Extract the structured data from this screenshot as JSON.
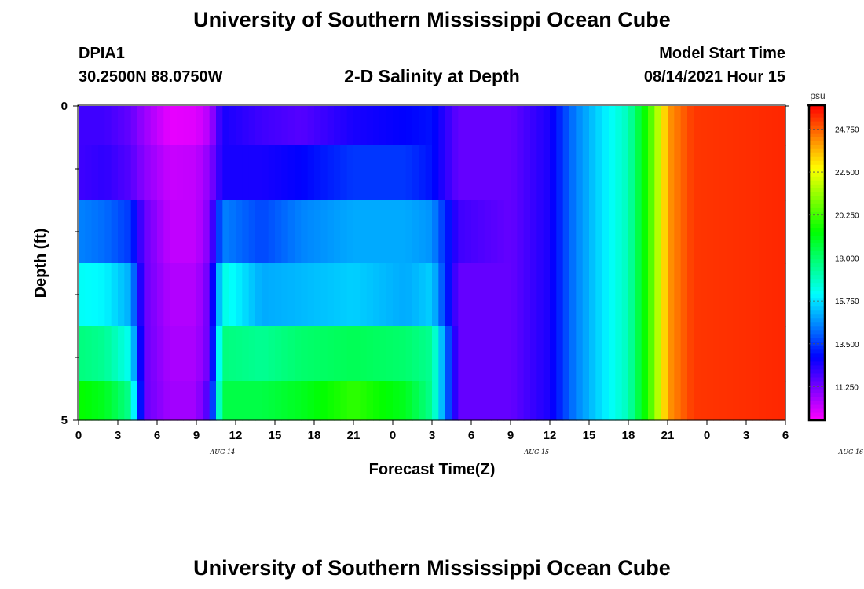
{
  "page_title": "University of Southern Mississippi Ocean Cube",
  "footer_title": "University of Southern Mississippi Ocean Cube",
  "header": {
    "station": "DPIA1",
    "coords": "30.2500N  88.0750W",
    "chart_title": "2-D Salinity at Depth",
    "model_label": "Model Start Time",
    "model_time": "08/14/2021 Hour 15"
  },
  "chart_data": {
    "type": "heatmap",
    "title": "2-D Salinity at Depth",
    "xlabel": "Forecast Time(Z)",
    "ylabel": "Depth (ft)",
    "x_ticks": [
      "0",
      "3",
      "6",
      "9",
      "12",
      "15",
      "18",
      "21",
      "0",
      "3",
      "6",
      "9",
      "12",
      "15",
      "18",
      "21",
      "0",
      "3",
      "6"
    ],
    "x_date_labels": [
      {
        "label": "AUG 14",
        "hour_index": 11
      },
      {
        "label": "AUG 15",
        "hour_index": 35
      },
      {
        "label": "AUG 16",
        "hour_index": 59
      }
    ],
    "y_tick_labels": [
      {
        "value": 0,
        "label": "0"
      },
      {
        "value": 5,
        "label": "5"
      }
    ],
    "y_minor_ticks": [
      1,
      2,
      3,
      4
    ],
    "ylim": [
      0,
      5
    ],
    "xlim_hours": [
      0,
      54
    ],
    "depth_layers": [
      0.25,
      1,
      2,
      3,
      4,
      4.75
    ],
    "colorbar": {
      "unit": "psu",
      "range": [
        9.5,
        26.0
      ],
      "tick_labels": [
        "24.750",
        "22.500",
        "20.250",
        "18.000",
        "15.750",
        "13.500",
        "11.250"
      ],
      "tick_values": [
        24.75,
        22.5,
        20.25,
        18.0,
        15.75,
        13.5,
        11.25
      ]
    },
    "salinity_profiles": [
      {
        "hour": 0,
        "layers": [
          12.0,
          12.0,
          14.5,
          16.2,
          17.8,
          19.5
        ]
      },
      {
        "hour": 2,
        "layers": [
          12.0,
          12.2,
          14.2,
          16.0,
          17.5,
          19.0
        ]
      },
      {
        "hour": 4,
        "layers": [
          11.5,
          11.7,
          13.5,
          15.0,
          16.2,
          17.5
        ]
      },
      {
        "hour": 5,
        "layers": [
          10.8,
          11.0,
          11.5,
          11.5,
          11.5,
          11.5
        ]
      },
      {
        "hour": 7,
        "layers": [
          9.8,
          10.2,
          10.3,
          10.5,
          10.6,
          10.7
        ]
      },
      {
        "hour": 9,
        "layers": [
          9.9,
          10.3,
          10.3,
          10.5,
          10.6,
          10.7
        ]
      },
      {
        "hour": 10,
        "layers": [
          10.5,
          11.0,
          11.2,
          11.5,
          11.5,
          12.0
        ]
      },
      {
        "hour": 11,
        "layers": [
          12.5,
          12.5,
          14.5,
          16.5,
          17.8,
          18.5
        ]
      },
      {
        "hour": 14,
        "layers": [
          12.0,
          12.5,
          13.7,
          15.0,
          17.5,
          18.5
        ]
      },
      {
        "hour": 17,
        "layers": [
          11.7,
          12.8,
          14.5,
          15.2,
          18.0,
          19.0
        ]
      },
      {
        "hour": 21,
        "layers": [
          12.5,
          13.5,
          15.0,
          15.5,
          18.3,
          20.0
        ]
      },
      {
        "hour": 25,
        "layers": [
          12.8,
          13.5,
          15.0,
          15.0,
          18.0,
          19.0
        ]
      },
      {
        "hour": 27,
        "layers": [
          13.0,
          13.0,
          14.7,
          15.5,
          17.5,
          17.5
        ]
      },
      {
        "hour": 29,
        "layers": [
          11.5,
          11.5,
          12.0,
          11.5,
          11.5,
          11.5
        ]
      },
      {
        "hour": 33,
        "layers": [
          11.5,
          11.5,
          11.5,
          11.5,
          11.5,
          11.5
        ]
      },
      {
        "hour": 36,
        "layers": [
          12.5,
          12.5,
          12.5,
          12.5,
          12.5,
          12.5
        ]
      },
      {
        "hour": 38,
        "layers": [
          14.5,
          14.5,
          14.5,
          14.5,
          14.5,
          14.5
        ]
      },
      {
        "hour": 42,
        "layers": [
          17.0,
          17.0,
          17.0,
          17.0,
          17.0,
          17.0
        ]
      },
      {
        "hour": 43,
        "layers": [
          19.0,
          19.0,
          19.0,
          19.0,
          19.0,
          19.0
        ]
      },
      {
        "hour": 44,
        "layers": [
          21.0,
          21.0,
          21.0,
          21.0,
          21.0,
          21.0
        ]
      },
      {
        "hour": 45,
        "layers": [
          24.0,
          24.0,
          24.0,
          24.0,
          24.0,
          24.0
        ]
      },
      {
        "hour": 47,
        "layers": [
          25.3,
          25.3,
          25.3,
          25.3,
          25.3,
          25.3
        ]
      },
      {
        "hour": 54,
        "layers": [
          25.5,
          25.5,
          25.5,
          25.5,
          25.5,
          25.5
        ]
      }
    ]
  }
}
